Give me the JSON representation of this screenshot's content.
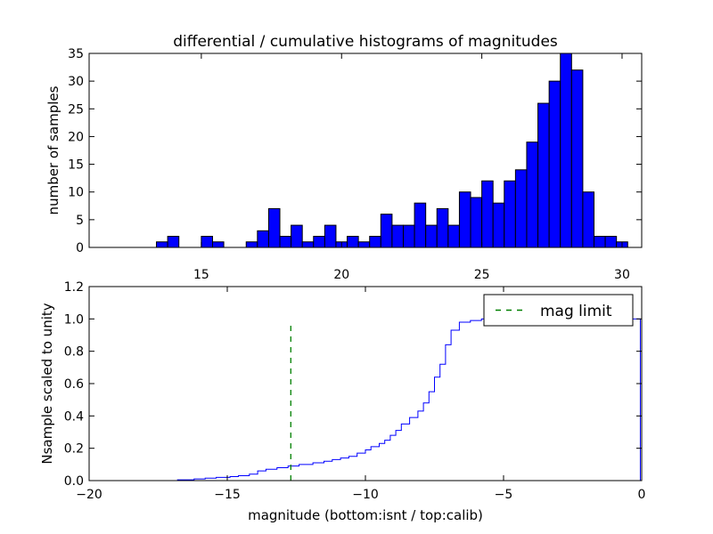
{
  "chart_data": [
    {
      "type": "bar",
      "title": "differential / cumulative histograms of magnitudes",
      "ylabel": "number of samples",
      "xlim": [
        11.0,
        30.7
      ],
      "ylim": [
        0,
        35
      ],
      "bin_width": 0.4,
      "bin_start": 11.0,
      "bar_color": "#0000ff",
      "values": [
        0,
        0,
        0,
        0,
        0,
        0,
        1,
        2,
        0,
        0,
        2,
        1,
        0,
        0,
        1,
        3,
        7,
        2,
        4,
        1,
        2,
        4,
        1,
        2,
        1,
        2,
        6,
        4,
        4,
        8,
        4,
        7,
        4,
        10,
        9,
        12,
        8,
        12,
        14,
        19,
        26,
        30,
        35,
        32,
        10,
        2,
        2,
        1
      ],
      "x_ticks": [
        15,
        20,
        25,
        30
      ],
      "y_ticks": [
        0,
        5,
        10,
        15,
        20,
        25,
        30,
        35
      ]
    },
    {
      "type": "line",
      "xlabel": "magnitude (bottom:isnt / top:calib)",
      "ylabel": "Nsample scaled to unity",
      "xlim": [
        -20,
        0
      ],
      "ylim": [
        0.0,
        1.2
      ],
      "line_color": "#0000ff",
      "x": [
        -20,
        -16.8,
        -16.2,
        -15.8,
        -15.4,
        -14.9,
        -14.6,
        -14.2,
        -13.9,
        -13.6,
        -13.2,
        -12.8,
        -12.4,
        -11.9,
        -11.5,
        -11.2,
        -10.9,
        -10.6,
        -10.3,
        -10.0,
        -9.8,
        -9.5,
        -9.3,
        -9.1,
        -8.9,
        -8.7,
        -8.4,
        -8.1,
        -7.9,
        -7.7,
        -7.5,
        -7.3,
        -7.1,
        -6.9,
        -6.6,
        -6.2,
        -5.8,
        -5.4,
        -0.05,
        -0.05
      ],
      "y": [
        0.0,
        0.005,
        0.01,
        0.015,
        0.02,
        0.025,
        0.03,
        0.04,
        0.06,
        0.07,
        0.08,
        0.09,
        0.1,
        0.11,
        0.12,
        0.13,
        0.14,
        0.15,
        0.17,
        0.19,
        0.21,
        0.23,
        0.25,
        0.28,
        0.31,
        0.35,
        0.39,
        0.43,
        0.48,
        0.55,
        0.64,
        0.72,
        0.84,
        0.93,
        0.98,
        0.99,
        1.0,
        1.0,
        1.0,
        0.0
      ],
      "mag_limit": {
        "x": -12.7,
        "y_from": 0.0,
        "y_to": 0.97,
        "color": "#008000"
      },
      "legend": {
        "entries": [
          {
            "name": "mag limit",
            "color": "#008000",
            "style": "dashed"
          }
        ],
        "placement": "top-right"
      },
      "x_ticks": [
        -20,
        -15,
        -10,
        -5,
        0
      ],
      "y_ticks": [
        0.0,
        0.2,
        0.4,
        0.6,
        0.8,
        1.0,
        1.2
      ]
    }
  ]
}
